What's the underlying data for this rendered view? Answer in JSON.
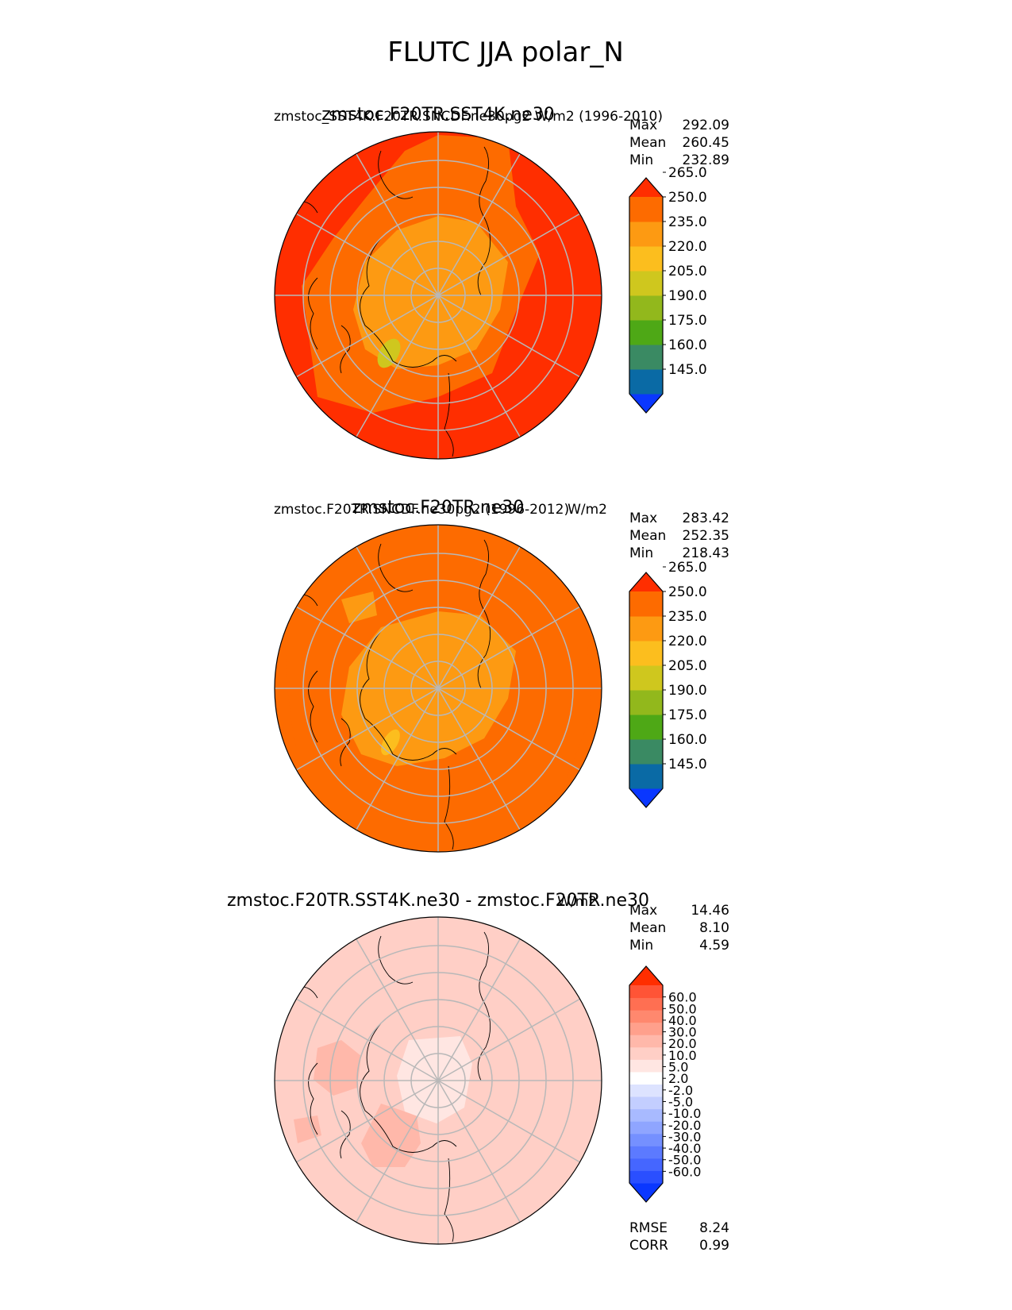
{
  "figure_title": "FLUTC JJA polar_N",
  "colors": {
    "main_levels": [
      "#0a37ff",
      "#0a6aa5",
      "#3a8a63",
      "#4ea816",
      "#92b81c",
      "#cfc71e",
      "#fcbe1e",
      "#fd9a12",
      "#fd6b00",
      "#ff2e00"
    ],
    "diff_levels": [
      "#0a37ff",
      "#2a4fff",
      "#4566ff",
      "#5c7aff",
      "#7590ff",
      "#8fa5ff",
      "#a8baff",
      "#c3ceff",
      "#dde3ff",
      "#ffffff",
      "#ffe6e2",
      "#ffcfc6",
      "#ffb8aa",
      "#ffa08c",
      "#ff886e",
      "#ff6f52",
      "#ff5436",
      "#ff2e00"
    ]
  },
  "chart_data": [
    {
      "type": "heatmap",
      "projection": "north polar stereographic",
      "title_left": "zmstoc_SST4K.F20TR.SNCDF.ne30pg2",
      "title_center": "zmstoc.F20TR.SST4K.ne30",
      "title_right": "W/m2 (1996-2010)",
      "stats": {
        "labels": [
          "Max",
          "Mean",
          "Min"
        ],
        "values": [
          "292.09",
          "260.45",
          "232.89"
        ]
      },
      "colorbar": {
        "boundaries": [
          137.5,
          152.5,
          167.5,
          182.5,
          197.5,
          212.5,
          227.5,
          242.5,
          257.5,
          272.5
        ],
        "tick_labels": [
          "145.0",
          "160.0",
          "175.0",
          "190.0",
          "205.0",
          "220.0",
          "235.0",
          "250.0",
          "265.0"
        ],
        "extend": "both"
      },
      "field_levels": {
        "outer": 9,
        "middle": 8,
        "inner": 7,
        "spots": 5
      }
    },
    {
      "type": "heatmap",
      "projection": "north polar stereographic",
      "title_left": "zmstoc.F20TR.SNCDF.ne30pg2 (1996-2012)",
      "title_center": "zmstoc.F20TR.ne30",
      "title_right": "W/m2",
      "stats": {
        "labels": [
          "Max",
          "Mean",
          "Min"
        ],
        "values": [
          "283.42",
          "252.35",
          "218.43"
        ]
      },
      "colorbar": {
        "boundaries": [
          137.5,
          152.5,
          167.5,
          182.5,
          197.5,
          212.5,
          227.5,
          242.5,
          257.5,
          272.5
        ],
        "tick_labels": [
          "145.0",
          "160.0",
          "175.0",
          "190.0",
          "205.0",
          "220.0",
          "235.0",
          "250.0",
          "265.0"
        ],
        "extend": "both"
      },
      "field_levels": {
        "outer": 8,
        "middle": 8,
        "inner": 7,
        "spots": 6
      }
    },
    {
      "type": "heatmap",
      "projection": "north polar stereographic",
      "title_center": "zmstoc.F20TR.SST4K.ne30 - zmstoc.F20TR.ne30",
      "title_right": "W/m2",
      "stats": {
        "labels": [
          "Max",
          "Mean",
          "Min"
        ],
        "values": [
          "14.46",
          "8.10",
          "4.59"
        ]
      },
      "colorbar": {
        "tick_labels": [
          "-60.0",
          "-50.0",
          "-40.0",
          "-30.0",
          "-20.0",
          "-10.0",
          "-5.0",
          "-2.0",
          "2.0",
          "5.0",
          "10.0",
          "20.0",
          "30.0",
          "40.0",
          "50.0",
          "60.0"
        ],
        "extend": "both"
      },
      "field_levels": {
        "outer": 11,
        "middle": 12,
        "inner": 10
      },
      "metrics": {
        "labels": [
          "RMSE",
          "CORR"
        ],
        "values": [
          "8.24",
          "0.99"
        ]
      }
    }
  ]
}
